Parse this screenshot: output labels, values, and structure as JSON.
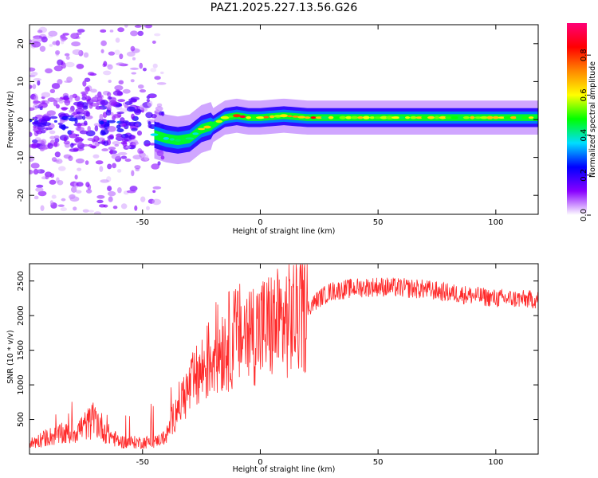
{
  "chart_data": [
    {
      "type": "heatmap",
      "title": "PAZ1.2025.227.13.56.G26",
      "xlabel": "Height of straight line (km)",
      "ylabel": "Frequency (Hz)",
      "xlim": [
        -98,
        118
      ],
      "ylim": [
        -25,
        25
      ],
      "xticks": [
        -50,
        0,
        50,
        100
      ],
      "yticks": [
        -20,
        -10,
        0,
        10,
        20
      ],
      "colorbar": {
        "label": "Normalized spectral amplitude",
        "range": [
          0,
          0.96
        ],
        "ticks": [
          0,
          0.2,
          0.4,
          0.6,
          0.8
        ],
        "colormap": [
          "#ffffff",
          "#8800ff",
          "#0000ff",
          "#00ddff",
          "#00ff00",
          "#ffff00",
          "#ff8800",
          "#ff0000",
          "#ff0077"
        ]
      },
      "ridge": {
        "x": [
          -45,
          -40,
          -35,
          -30,
          -25,
          -20,
          -15,
          -10,
          -5,
          0,
          10,
          20,
          40,
          60,
          80,
          100,
          118
        ],
        "y": [
          -4,
          -5,
          -5.5,
          -5,
          -2.5,
          -1.5,
          0.5,
          1,
          0.5,
          0.5,
          1,
          0.5,
          0.5,
          0.5,
          0.5,
          0.5,
          0.5
        ]
      },
      "grid": false
    },
    {
      "type": "line",
      "title": "",
      "xlabel": "Height of straight line (km)",
      "ylabel": "SNR (10 * v/v)",
      "xlim": [
        -98,
        118
      ],
      "ylim": [
        0,
        2750
      ],
      "xticks": [
        -50,
        0,
        50,
        100
      ],
      "yticks": [
        500,
        1000,
        1500,
        2000,
        2500
      ],
      "color": "#ff2a2a",
      "envelope": {
        "x": [
          -98,
          -90,
          -80,
          -75,
          -70,
          -65,
          -60,
          -55,
          -50,
          -45,
          -40,
          -35,
          -30,
          -25,
          -20,
          -15,
          -10,
          -5,
          0,
          5,
          10,
          15,
          20,
          25,
          30,
          40,
          50,
          60,
          70,
          80,
          90,
          100,
          110,
          118
        ],
        "y": [
          150,
          250,
          300,
          400,
          500,
          300,
          180,
          170,
          170,
          180,
          250,
          700,
          950,
          1200,
          1450,
          1600,
          1700,
          1750,
          1800,
          1850,
          1900,
          2000,
          2100,
          2250,
          2350,
          2400,
          2420,
          2400,
          2380,
          2330,
          2290,
          2250,
          2240,
          2230
        ]
      },
      "grid": false
    }
  ]
}
